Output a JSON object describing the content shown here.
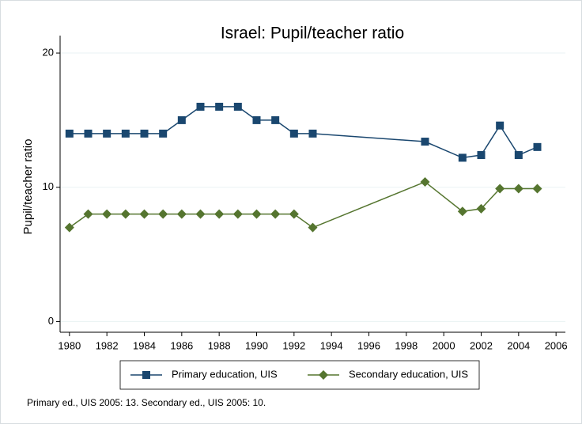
{
  "chart_data": {
    "type": "line",
    "title": "Israel: Pupil/teacher ratio",
    "y_label": "Pupil/teacher ratio",
    "x": [
      1980,
      1981,
      1982,
      1983,
      1984,
      1985,
      1986,
      1987,
      1988,
      1989,
      1990,
      1991,
      1992,
      1993,
      1999,
      2001,
      2002,
      2003,
      2004,
      2005
    ],
    "series": [
      {
        "name": "Primary education, UIS",
        "color": "#1a476f",
        "marker": "square",
        "values": [
          14,
          14,
          14,
          14,
          14,
          14,
          15,
          16,
          16,
          16,
          15,
          15,
          14,
          14,
          13.4,
          12.2,
          12.4,
          14.6,
          12.4,
          13
        ]
      },
      {
        "name": "Secondary education, UIS",
        "color": "#55752f",
        "marker": "diamond",
        "values": [
          7,
          8,
          8,
          8,
          8,
          8,
          8,
          8,
          8,
          8,
          8,
          8,
          8,
          7,
          10.4,
          8.2,
          8.4,
          9.9,
          9.9,
          9.9
        ]
      }
    ],
    "xlim": [
      1979.5,
      2006.5
    ],
    "xticks": [
      1980,
      1982,
      1984,
      1986,
      1988,
      1990,
      1992,
      1994,
      1996,
      1998,
      2000,
      2002,
      2004,
      2006
    ],
    "ylim": [
      -0.8,
      21.3
    ],
    "yticks": [
      0,
      10,
      20
    ],
    "grid": true,
    "legend": "bottom",
    "note": "Primary ed., UIS 2005: 13. Secondary ed., UIS 2005: 10."
  }
}
